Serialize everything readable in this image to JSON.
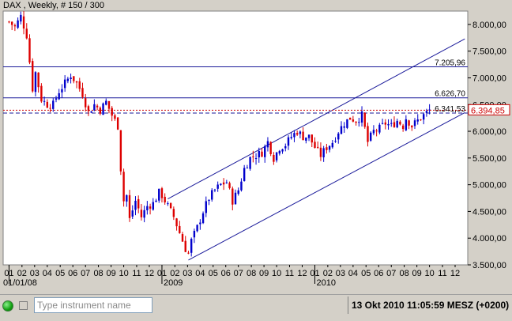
{
  "title": "DAX , Weekly, # 150 / 300",
  "colors": {
    "up": "#0000cc",
    "down": "#dd0000",
    "line": "#1a1a9a",
    "current": "#cc0000",
    "plot_bg": "#ffffff",
    "frame_bg": "#d4d0c8"
  },
  "chart_data": {
    "type": "candlestick",
    "ylim": [
      3500,
      8250
    ],
    "y_ticks": [
      3500,
      4000,
      4500,
      5000,
      5500,
      6000,
      6500,
      7000,
      7500,
      8000
    ],
    "y_tick_labels": [
      "3.500,00",
      "4.000,00",
      "4.500,00",
      "5.000,00",
      "5.500,00",
      "6.000,00",
      "6.500,00",
      "7.000,00",
      "7.500,00",
      "8.000,00"
    ],
    "x_ticks": [
      {
        "label": "01",
        "week": 0
      },
      {
        "label": "02",
        "week": 4.4
      },
      {
        "label": "03",
        "week": 8.7
      },
      {
        "label": "04",
        "week": 13
      },
      {
        "label": "05",
        "week": 17.4
      },
      {
        "label": "06",
        "week": 21.7
      },
      {
        "label": "07",
        "week": 26
      },
      {
        "label": "08",
        "week": 30.4
      },
      {
        "label": "09",
        "week": 34.7
      },
      {
        "label": "10",
        "week": 39
      },
      {
        "label": "11",
        "week": 43.4
      },
      {
        "label": "12",
        "week": 47.7
      },
      {
        "label": "01",
        "week": 52
      },
      {
        "label": "02",
        "week": 56.4
      },
      {
        "label": "03",
        "week": 60.7
      },
      {
        "label": "04",
        "week": 65
      },
      {
        "label": "05",
        "week": 69.4
      },
      {
        "label": "06",
        "week": 73.7
      },
      {
        "label": "07",
        "week": 78
      },
      {
        "label": "08",
        "week": 82.4
      },
      {
        "label": "09",
        "week": 86.7
      },
      {
        "label": "10",
        "week": 91
      },
      {
        "label": "11",
        "week": 95.4
      },
      {
        "label": "12",
        "week": 99.7
      },
      {
        "label": "01",
        "week": 104
      },
      {
        "label": "02",
        "week": 108.4
      },
      {
        "label": "03",
        "week": 112.7
      },
      {
        "label": "04",
        "week": 117
      },
      {
        "label": "05",
        "week": 121.4
      },
      {
        "label": "06",
        "week": 125.7
      },
      {
        "label": "07",
        "week": 130
      },
      {
        "label": "08",
        "week": 134.4
      },
      {
        "label": "09",
        "week": 138.7
      },
      {
        "label": "10",
        "week": 143
      },
      {
        "label": "11",
        "week": 147.4
      },
      {
        "label": "12",
        "week": 151.7
      }
    ],
    "year_labels": [
      {
        "label": "01/01/08",
        "week": 0
      },
      {
        "label": "2009",
        "week": 52
      },
      {
        "label": "2010",
        "week": 104
      }
    ],
    "x_range": [
      -2,
      156
    ],
    "h_lines": [
      {
        "value": 7205.96,
        "label": "7.205,96",
        "style": "solid"
      },
      {
        "value": 6626.7,
        "label": "6.626,70",
        "style": "solid"
      },
      {
        "value": 6341.53,
        "label": "6.341,53",
        "style": "dashed"
      }
    ],
    "current": {
      "value": 6394.85,
      "label": "6.394,85"
    },
    "channel": [
      {
        "x1": 54,
        "y1": 4735,
        "x2": 155,
        "y2": 7730
      },
      {
        "x1": 61,
        "y1": 3590,
        "x2": 155,
        "y2": 6350
      }
    ],
    "anchors": [
      [
        0,
        8050
      ],
      [
        2,
        7950
      ],
      [
        4,
        8150
      ],
      [
        6,
        7800
      ],
      [
        8,
        6800
      ],
      [
        9,
        7100
      ],
      [
        11,
        6600
      ],
      [
        13,
        6500
      ],
      [
        15,
        6500
      ],
      [
        17,
        6750
      ],
      [
        19,
        6900
      ],
      [
        21,
        7050
      ],
      [
        23,
        6900
      ],
      [
        25,
        6700
      ],
      [
        27,
        6350
      ],
      [
        29,
        6500
      ],
      [
        31,
        6400
      ],
      [
        33,
        6550
      ],
      [
        35,
        6300
      ],
      [
        37,
        6100
      ],
      [
        38,
        5300
      ],
      [
        39,
        4700
      ],
      [
        40,
        4800
      ],
      [
        41,
        4350
      ],
      [
        43,
        4700
      ],
      [
        45,
        4400
      ],
      [
        47,
        4600
      ],
      [
        49,
        4650
      ],
      [
        51,
        4850
      ],
      [
        52,
        4800
      ],
      [
        54,
        4600
      ],
      [
        56,
        4400
      ],
      [
        58,
        4100
      ],
      [
        60,
        3800
      ],
      [
        61,
        3720
      ],
      [
        62,
        3950
      ],
      [
        64,
        4200
      ],
      [
        66,
        4500
      ],
      [
        68,
        4750
      ],
      [
        70,
        4900
      ],
      [
        72,
        5000
      ],
      [
        74,
        5050
      ],
      [
        76,
        4700
      ],
      [
        78,
        4900
      ],
      [
        80,
        5300
      ],
      [
        82,
        5500
      ],
      [
        84,
        5550
      ],
      [
        86,
        5600
      ],
      [
        88,
        5800
      ],
      [
        90,
        5500
      ],
      [
        92,
        5700
      ],
      [
        94,
        5750
      ],
      [
        96,
        5900
      ],
      [
        98,
        6000
      ],
      [
        100,
        5900
      ],
      [
        102,
        5900
      ],
      [
        104,
        5700
      ],
      [
        106,
        5550
      ],
      [
        108,
        5700
      ],
      [
        110,
        5800
      ],
      [
        112,
        6000
      ],
      [
        114,
        6150
      ],
      [
        116,
        6250
      ],
      [
        118,
        6200
      ],
      [
        120,
        6300
      ],
      [
        122,
        5800
      ],
      [
        124,
        6000
      ],
      [
        126,
        6050
      ],
      [
        128,
        6150
      ],
      [
        130,
        6100
      ],
      [
        132,
        6200
      ],
      [
        134,
        6100
      ],
      [
        135,
        6250
      ],
      [
        137,
        6100
      ],
      [
        139,
        6200
      ],
      [
        141,
        6300
      ],
      [
        143,
        6395
      ]
    ],
    "last_week": 143
  },
  "statusbar": {
    "search_placeholder": "Type instrument name",
    "datetime": "13 Okt 2010  11:05:59  MESZ (+0200)"
  }
}
